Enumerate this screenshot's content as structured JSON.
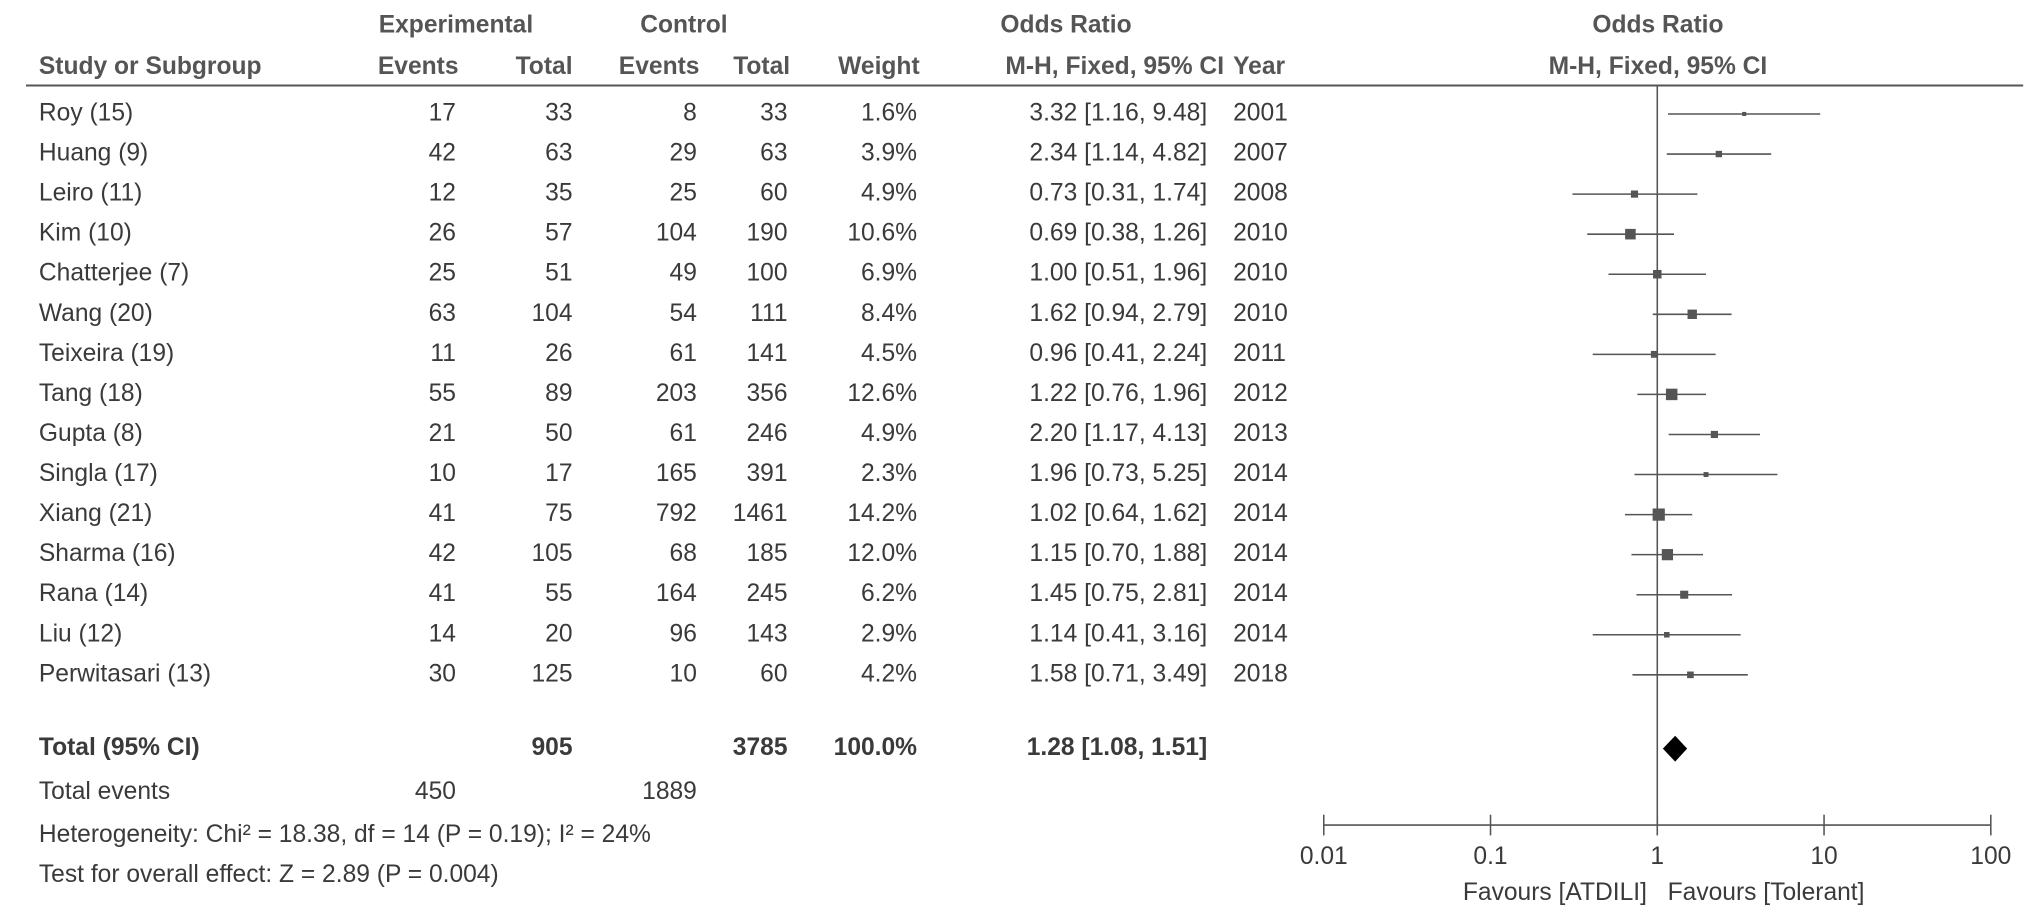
{
  "chart_data": {
    "type": "forest",
    "header": {
      "experimental": "Experimental",
      "control": "Control",
      "or_table": "Odds Ratio",
      "or_plot": "Odds Ratio",
      "study": "Study or Subgroup",
      "exp_events": "Events",
      "exp_total": "Total",
      "ctrl_events": "Events",
      "ctrl_total": "Total",
      "weight": "Weight",
      "method_table": "M-H, Fixed, 95% CI",
      "year": "Year",
      "method_plot": "M-H, Fixed, 95% CI"
    },
    "studies": [
      {
        "name": "Roy (15)",
        "exp_events": 17,
        "exp_total": 33,
        "ctrl_events": 8,
        "ctrl_total": 33,
        "weight": 1.6,
        "weight_label": "1.6%",
        "or": 3.32,
        "ci_low": 1.16,
        "ci_high": 9.48,
        "or_label": "3.32 [1.16, 9.48]",
        "year": 2001
      },
      {
        "name": "Huang (9)",
        "exp_events": 42,
        "exp_total": 63,
        "ctrl_events": 29,
        "ctrl_total": 63,
        "weight": 3.9,
        "weight_label": "3.9%",
        "or": 2.34,
        "ci_low": 1.14,
        "ci_high": 4.82,
        "or_label": "2.34 [1.14, 4.82]",
        "year": 2007
      },
      {
        "name": "Leiro (11)",
        "exp_events": 12,
        "exp_total": 35,
        "ctrl_events": 25,
        "ctrl_total": 60,
        "weight": 4.9,
        "weight_label": "4.9%",
        "or": 0.73,
        "ci_low": 0.31,
        "ci_high": 1.74,
        "or_label": "0.73 [0.31, 1.74]",
        "year": 2008
      },
      {
        "name": "Kim (10)",
        "exp_events": 26,
        "exp_total": 57,
        "ctrl_events": 104,
        "ctrl_total": 190,
        "weight": 10.6,
        "weight_label": "10.6%",
        "or": 0.69,
        "ci_low": 0.38,
        "ci_high": 1.26,
        "or_label": "0.69 [0.38, 1.26]",
        "year": 2010
      },
      {
        "name": "Chatterjee (7)",
        "exp_events": 25,
        "exp_total": 51,
        "ctrl_events": 49,
        "ctrl_total": 100,
        "weight": 6.9,
        "weight_label": "6.9%",
        "or": 1.0,
        "ci_low": 0.51,
        "ci_high": 1.96,
        "or_label": "1.00 [0.51, 1.96]",
        "year": 2010
      },
      {
        "name": "Wang (20)",
        "exp_events": 63,
        "exp_total": 104,
        "ctrl_events": 54,
        "ctrl_total": 111,
        "weight": 8.4,
        "weight_label": "8.4%",
        "or": 1.62,
        "ci_low": 0.94,
        "ci_high": 2.79,
        "or_label": "1.62 [0.94, 2.79]",
        "year": 2010
      },
      {
        "name": "Teixeira (19)",
        "exp_events": 11,
        "exp_total": 26,
        "ctrl_events": 61,
        "ctrl_total": 141,
        "weight": 4.5,
        "weight_label": "4.5%",
        "or": 0.96,
        "ci_low": 0.41,
        "ci_high": 2.24,
        "or_label": "0.96 [0.41, 2.24]",
        "year": 2011
      },
      {
        "name": "Tang (18)",
        "exp_events": 55,
        "exp_total": 89,
        "ctrl_events": 203,
        "ctrl_total": 356,
        "weight": 12.6,
        "weight_label": "12.6%",
        "or": 1.22,
        "ci_low": 0.76,
        "ci_high": 1.96,
        "or_label": "1.22 [0.76, 1.96]",
        "year": 2012
      },
      {
        "name": "Gupta (8)",
        "exp_events": 21,
        "exp_total": 50,
        "ctrl_events": 61,
        "ctrl_total": 246,
        "weight": 4.9,
        "weight_label": "4.9%",
        "or": 2.2,
        "ci_low": 1.17,
        "ci_high": 4.13,
        "or_label": "2.20 [1.17, 4.13]",
        "year": 2013
      },
      {
        "name": "Singla (17)",
        "exp_events": 10,
        "exp_total": 17,
        "ctrl_events": 165,
        "ctrl_total": 391,
        "weight": 2.3,
        "weight_label": "2.3%",
        "or": 1.96,
        "ci_low": 0.73,
        "ci_high": 5.25,
        "or_label": "1.96 [0.73, 5.25]",
        "year": 2014
      },
      {
        "name": "Xiang (21)",
        "exp_events": 41,
        "exp_total": 75,
        "ctrl_events": 792,
        "ctrl_total": 1461,
        "weight": 14.2,
        "weight_label": "14.2%",
        "or": 1.02,
        "ci_low": 0.64,
        "ci_high": 1.62,
        "or_label": "1.02 [0.64, 1.62]",
        "year": 2014
      },
      {
        "name": "Sharma (16)",
        "exp_events": 42,
        "exp_total": 105,
        "ctrl_events": 68,
        "ctrl_total": 185,
        "weight": 12.0,
        "weight_label": "12.0%",
        "or": 1.15,
        "ci_low": 0.7,
        "ci_high": 1.88,
        "or_label": "1.15 [0.70, 1.88]",
        "year": 2014
      },
      {
        "name": "Rana (14)",
        "exp_events": 41,
        "exp_total": 55,
        "ctrl_events": 164,
        "ctrl_total": 245,
        "weight": 6.2,
        "weight_label": "6.2%",
        "or": 1.45,
        "ci_low": 0.75,
        "ci_high": 2.81,
        "or_label": "1.45 [0.75, 2.81]",
        "year": 2014
      },
      {
        "name": "Liu (12)",
        "exp_events": 14,
        "exp_total": 20,
        "ctrl_events": 96,
        "ctrl_total": 143,
        "weight": 2.9,
        "weight_label": "2.9%",
        "or": 1.14,
        "ci_low": 0.41,
        "ci_high": 3.16,
        "or_label": "1.14 [0.41, 3.16]",
        "year": 2014
      },
      {
        "name": "Perwitasari (13)",
        "exp_events": 30,
        "exp_total": 125,
        "ctrl_events": 10,
        "ctrl_total": 60,
        "weight": 4.2,
        "weight_label": "4.2%",
        "or": 1.58,
        "ci_low": 0.71,
        "ci_high": 3.49,
        "or_label": "1.58 [0.71, 3.49]",
        "year": 2018
      }
    ],
    "total": {
      "name": "Total (95% CI)",
      "exp_total": 905,
      "ctrl_total": 3785,
      "weight_label": "100.0%",
      "or": 1.28,
      "ci_low": 1.08,
      "ci_high": 1.51,
      "or_label": "1.28 [1.08, 1.51]"
    },
    "total_events": {
      "label": "Total events",
      "exp_events": 450,
      "ctrl_events": 1889
    },
    "heterogeneity": "Heterogeneity: Chi² = 18.38, df = 14 (P = 0.19); I² = 24%",
    "overall_effect": "Test for overall effect: Z = 2.89 (P = 0.004)",
    "log_x": true,
    "xlim": [
      0.01,
      100
    ],
    "xticks": [
      0.01,
      0.1,
      1,
      10,
      100
    ],
    "favours_left": "Favours [ATDILI]",
    "favours_right": "Favours [Tolerant]",
    "color": "#555555"
  }
}
